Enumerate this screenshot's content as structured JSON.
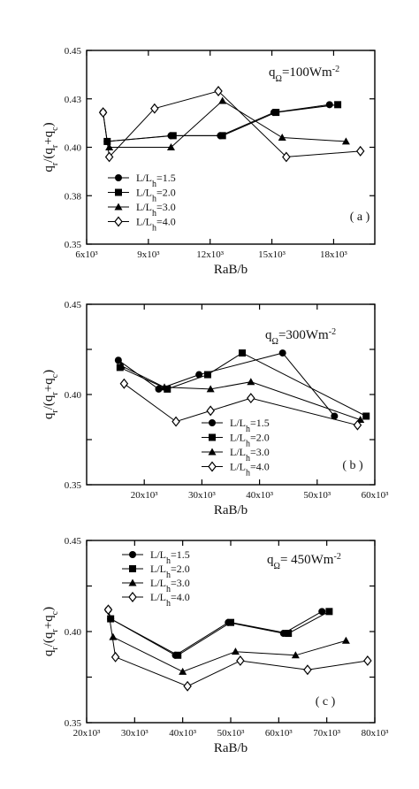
{
  "chart_data": [
    {
      "type": "line",
      "panel_label": "( a )",
      "annotation": {
        "q": "q",
        "sub": "Ω",
        "rest": "=100Wm",
        "sup": "-2"
      },
      "xlabel": "RaB/b",
      "ylabel": {
        "a": "q",
        "a_sub": "r",
        "b": "/(q",
        "b_sub": "r",
        "c": "+q",
        "c_sub": "c",
        "d": ")"
      },
      "xlim": [
        6000,
        20000
      ],
      "ylim": [
        0.35,
        0.45
      ],
      "xticks": [
        6000,
        9000,
        12000,
        15000,
        18000
      ],
      "xtick_labels": [
        "6x10³",
        "9x10³",
        "12x10³",
        "15x10³",
        "18x10³"
      ],
      "yticks": [
        0.35,
        0.375,
        0.4,
        0.425,
        0.45
      ],
      "ytick_labels": [
        "0.35",
        "0.38",
        "0.40",
        "0.43",
        "0.45"
      ],
      "legend_position": "bottom-left",
      "series": [
        {
          "name": "L/L_h=1.5",
          "marker": "circle",
          "x": [
            6800,
            7000,
            10100,
            12500,
            15100,
            17800
          ],
          "y": [
            0.418,
            0.403,
            0.406,
            0.406,
            0.418,
            0.422
          ]
        },
        {
          "name": "L/L_h=2.0",
          "marker": "square",
          "x": [
            7000,
            10200,
            12600,
            15200,
            18200
          ],
          "y": [
            0.403,
            0.406,
            0.406,
            0.418,
            0.422
          ]
        },
        {
          "name": "L/L_h=3.0",
          "marker": "triangle",
          "x": [
            7100,
            10100,
            12600,
            15500,
            18600
          ],
          "y": [
            0.4,
            0.4,
            0.424,
            0.405,
            0.403
          ]
        },
        {
          "name": "L/L_h=4.0",
          "marker": "diamond",
          "x": [
            6800,
            7100,
            9300,
            12400,
            15700,
            19300
          ],
          "y": [
            0.418,
            0.395,
            0.42,
            0.429,
            0.395,
            0.398
          ]
        }
      ]
    },
    {
      "type": "line",
      "panel_label": "( b )",
      "annotation": {
        "q": "q",
        "sub": "Ω",
        "rest": "=300Wm",
        "sup": "-2"
      },
      "xlabel": "RaB/b",
      "ylabel": {
        "a": "q",
        "a_sub": "r",
        "b": "/(q",
        "b_sub": "r",
        "c": "+q",
        "c_sub": "c",
        "d": ")"
      },
      "xlim": [
        10000,
        60000
      ],
      "ylim": [
        0.35,
        0.45
      ],
      "xticks": [
        20000,
        30000,
        40000,
        50000,
        60000
      ],
      "xtick_labels": [
        "20x10³",
        "30x10³",
        "40x10³",
        "50x10³",
        "60x10³"
      ],
      "yticks": [
        0.35,
        0.375,
        0.4,
        0.425,
        0.45
      ],
      "ytick_labels": [
        "0.35",
        "",
        "0.40",
        "",
        "0.45"
      ],
      "legend_position": "bottom-right",
      "series": [
        {
          "name": "L/L_h=1.5",
          "marker": "circle",
          "x": [
            15500,
            22500,
            29500,
            44000,
            53000
          ],
          "y": [
            0.419,
            0.403,
            0.411,
            0.423,
            0.388
          ]
        },
        {
          "name": "L/L_h=2.0",
          "marker": "square",
          "x": [
            15800,
            24000,
            31000,
            37000,
            58500
          ],
          "y": [
            0.415,
            0.403,
            0.411,
            0.423,
            0.388
          ]
        },
        {
          "name": "L/L_h=3.0",
          "marker": "triangle",
          "x": [
            16000,
            23500,
            31500,
            38500,
            57500
          ],
          "y": [
            0.416,
            0.404,
            0.403,
            0.407,
            0.386
          ]
        },
        {
          "name": "L/L_h=4.0",
          "marker": "diamond",
          "x": [
            16500,
            25500,
            31500,
            38500,
            57000
          ],
          "y": [
            0.406,
            0.385,
            0.391,
            0.398,
            0.383
          ]
        }
      ]
    },
    {
      "type": "line",
      "panel_label": "( c )",
      "annotation": {
        "q": "q",
        "sub": "Ω",
        "rest": "= 450Wm",
        "sup": "-2"
      },
      "xlabel": "RaB/b",
      "ylabel": {
        "a": "q",
        "a_sub": "r",
        "b": "/(q",
        "b_sub": "r",
        "c": "+q",
        "c_sub": "c",
        "d": ")"
      },
      "xlim": [
        20000,
        80000
      ],
      "ylim": [
        0.35,
        0.45
      ],
      "xticks": [
        20000,
        30000,
        40000,
        50000,
        60000,
        70000,
        80000
      ],
      "xtick_labels": [
        "20x10³",
        "30x10³",
        "40x10³",
        "50x10³",
        "60x10³",
        "70x10³",
        "80x10³"
      ],
      "yticks": [
        0.35,
        0.375,
        0.4,
        0.425,
        0.45
      ],
      "ytick_labels": [
        "0.35",
        "",
        "0.40",
        "",
        "0.45"
      ],
      "legend_position": "top-left",
      "series": [
        {
          "name": "L/L_h=1.5",
          "marker": "circle",
          "x": [
            24500,
            25000,
            38500,
            49500,
            61000,
            69000
          ],
          "y": [
            0.412,
            0.407,
            0.387,
            0.405,
            0.399,
            0.411
          ]
        },
        {
          "name": "L/L_h=2.0",
          "marker": "square",
          "x": [
            25000,
            39000,
            50000,
            62000,
            70500
          ],
          "y": [
            0.407,
            0.387,
            0.405,
            0.399,
            0.411
          ]
        },
        {
          "name": "L/L_h=3.0",
          "marker": "triangle",
          "x": [
            25500,
            40000,
            51000,
            63500,
            74000
          ],
          "y": [
            0.397,
            0.378,
            0.389,
            0.387,
            0.395
          ]
        },
        {
          "name": "L/L_h=4.0",
          "marker": "diamond",
          "x": [
            24500,
            26000,
            41000,
            52000,
            66000,
            78500
          ],
          "y": [
            0.412,
            0.386,
            0.37,
            0.384,
            0.379,
            0.384
          ]
        }
      ]
    }
  ]
}
